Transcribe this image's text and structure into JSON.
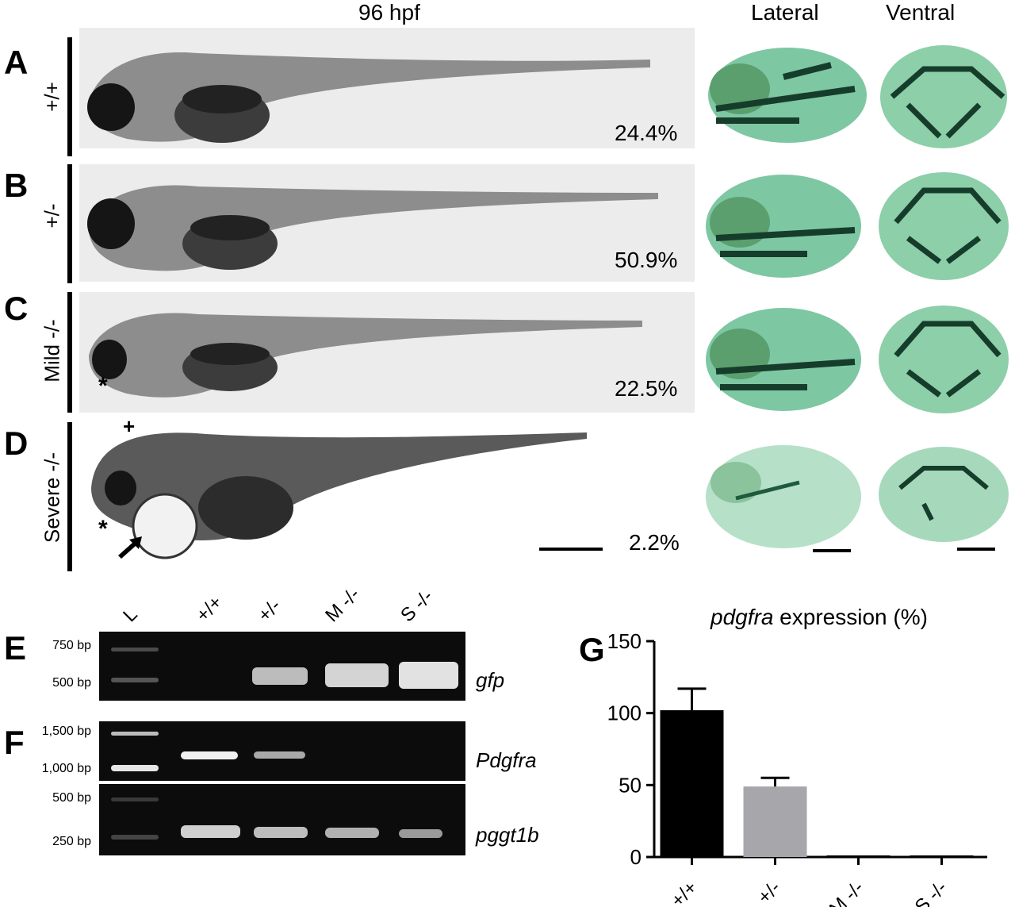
{
  "headers": {
    "fish": "96 hpf",
    "lateral": "Lateral",
    "ventral": "Ventral"
  },
  "rows": [
    {
      "letter": "A",
      "genotype": "+/+",
      "percent": "24.4%"
    },
    {
      "letter": "B",
      "genotype": "+/-",
      "percent": "50.9%"
    },
    {
      "letter": "C",
      "genotype": "Mild -/-",
      "percent": "22.5%"
    },
    {
      "letter": "D",
      "genotype": "Severe -/-",
      "percent": "2.2%"
    }
  ],
  "annotations": {
    "asterisk": "*",
    "plus": "+"
  },
  "gel": {
    "lanes": [
      "L",
      "+/+",
      "+/-",
      "M -/-",
      "S -/-"
    ],
    "panel_e": {
      "letter": "E",
      "gene": "gfp",
      "markers": [
        "750 bp",
        "500 bp"
      ]
    },
    "panel_f": {
      "letter": "F",
      "gene": "Pdgfra",
      "markers": [
        "1,500 bp",
        "1,000 bp"
      ]
    },
    "panel_f2": {
      "gene": "pggt1b",
      "markers": [
        "500 bp",
        "250 bp"
      ]
    }
  },
  "colors": {
    "bar_wt": "#000000",
    "bar_het": "#a7a7ab",
    "stain": "#2d9e6a"
  },
  "chart_data": {
    "type": "bar",
    "panel_letter": "G",
    "title_italic": "pdgfra",
    "title_rest": " expression (%)",
    "categories": [
      "+/+",
      "+/-",
      "M -/-",
      "S -/-"
    ],
    "values": [
      102,
      49,
      0,
      0
    ],
    "errors": [
      15,
      6,
      0,
      0
    ],
    "ylim": [
      0,
      150
    ],
    "yticks": [
      0,
      50,
      100,
      150
    ]
  }
}
